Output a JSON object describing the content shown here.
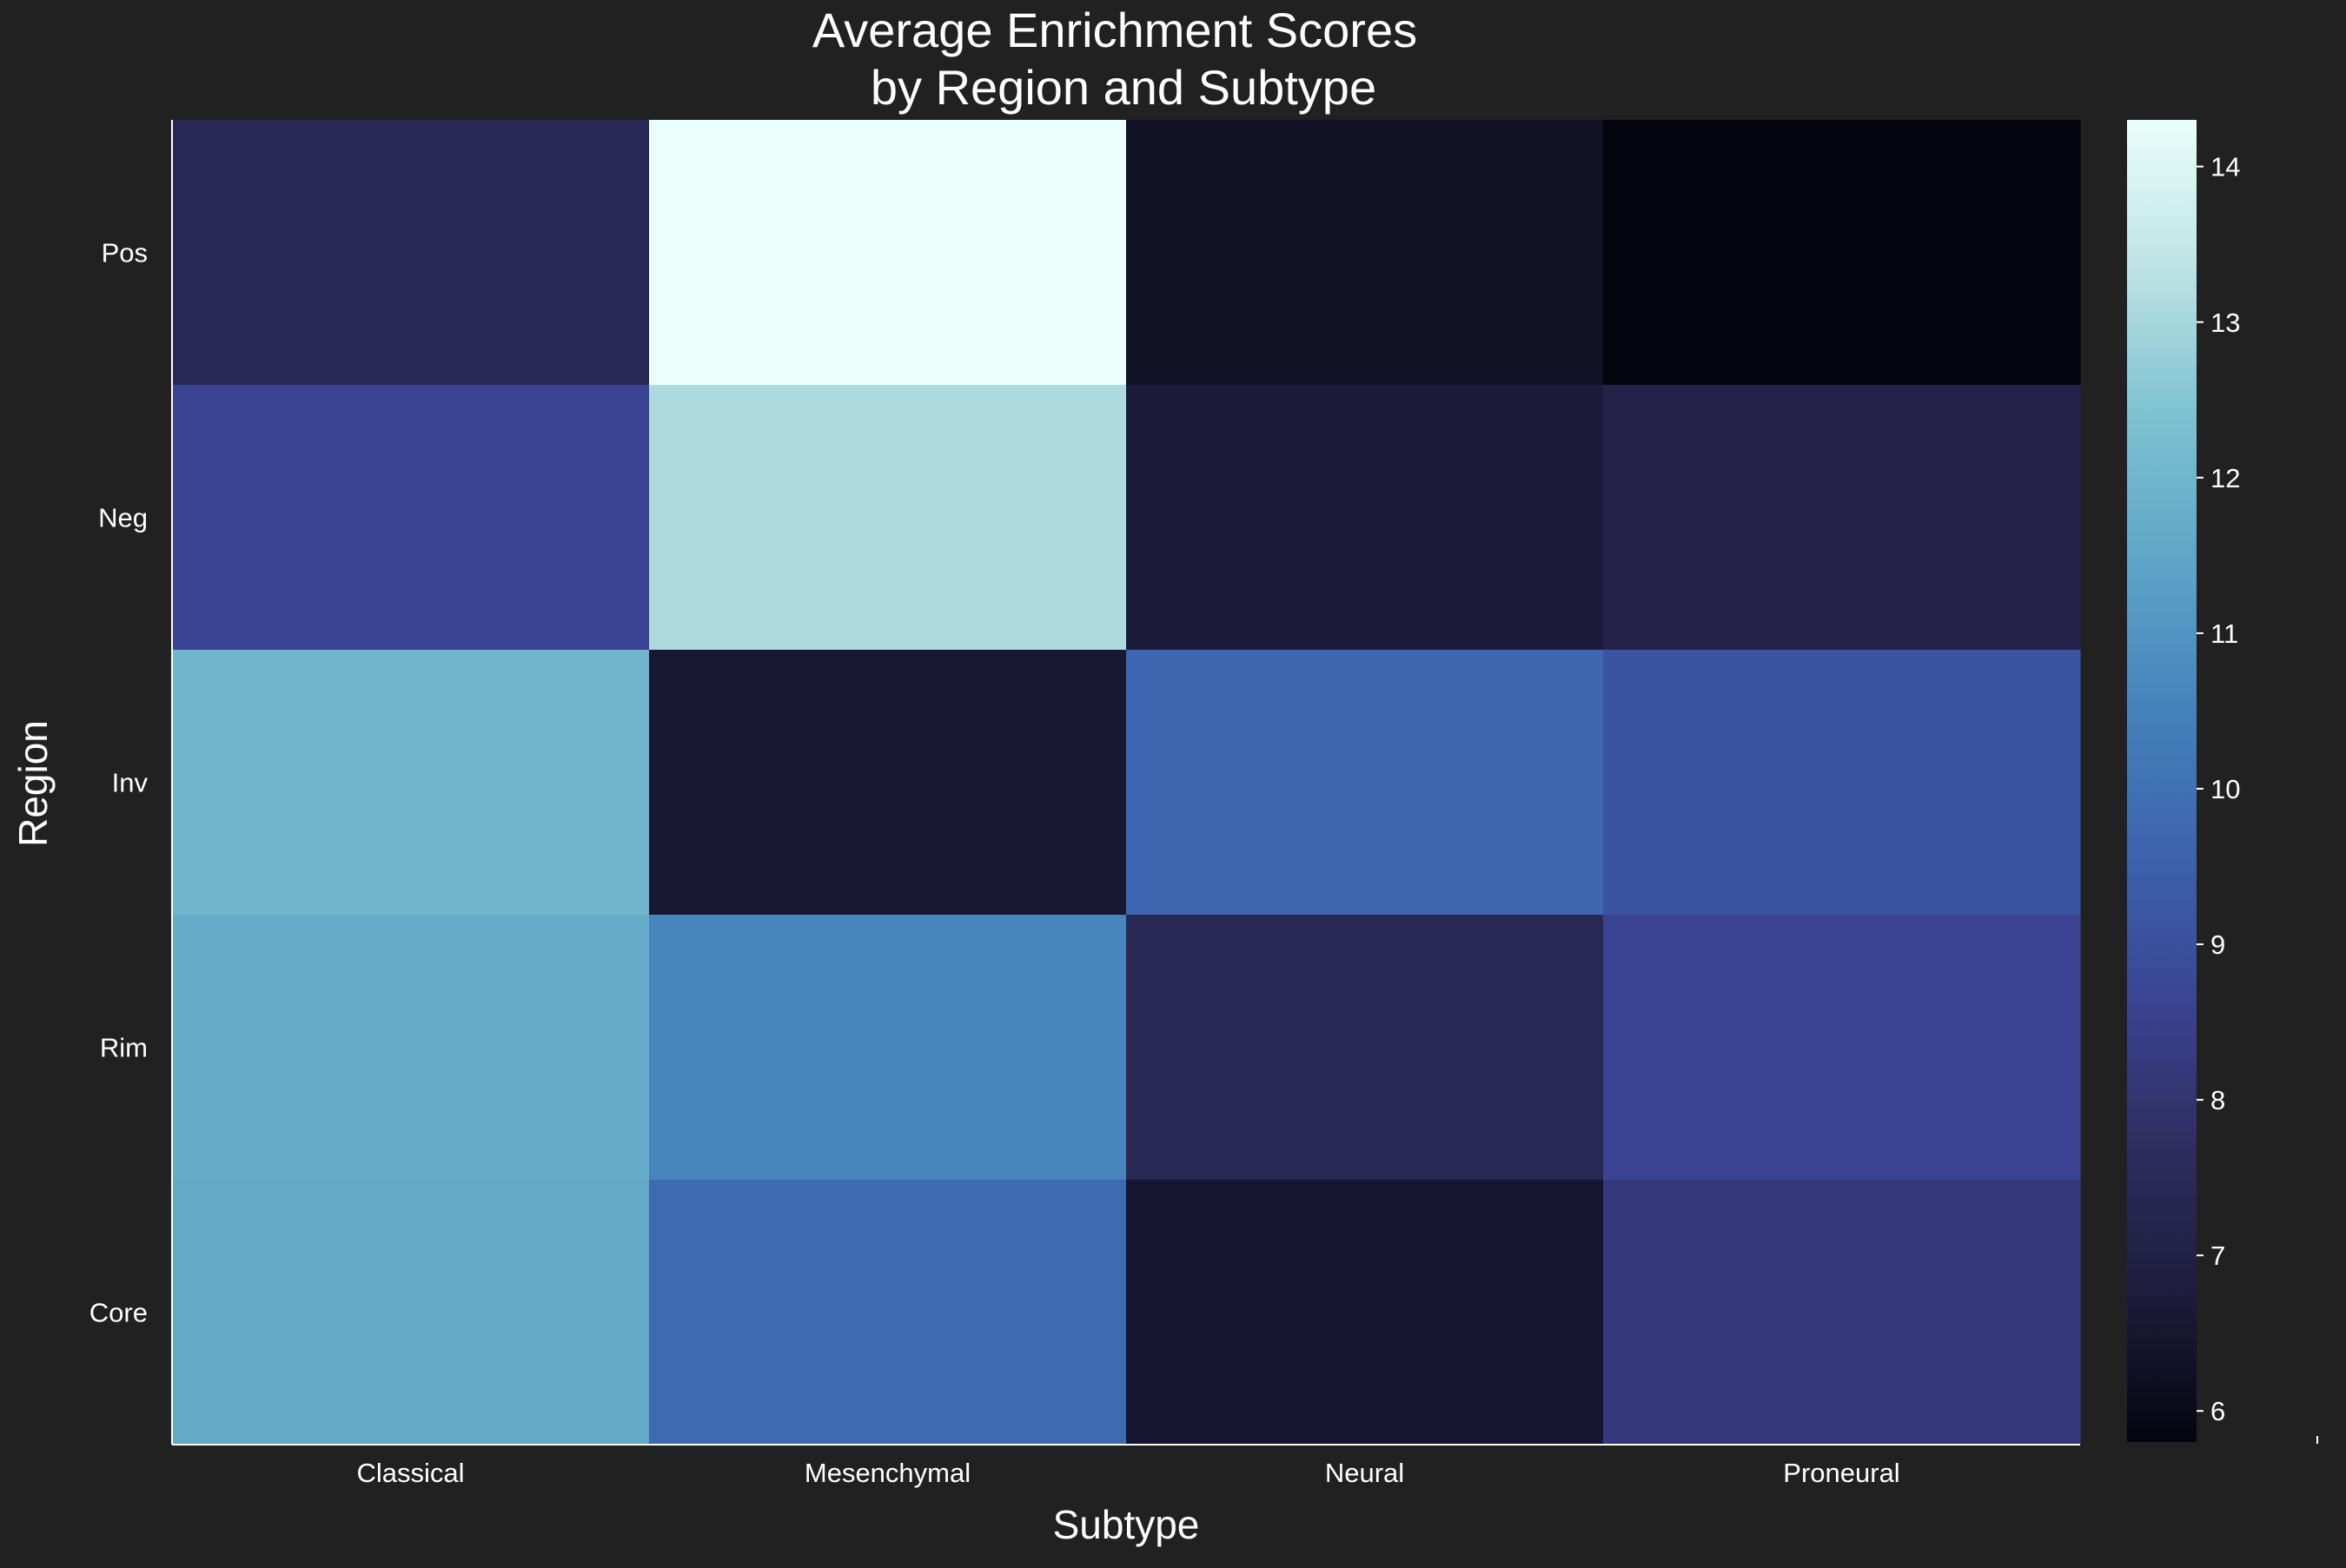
{
  "chart_data": {
    "type": "heatmap",
    "title_line1": "Average Enrichment Scores",
    "title_line2": "by Region and Subtype",
    "xlabel": "Subtype",
    "ylabel": "Region",
    "x_categories": [
      "Classical",
      "Mesenchymal",
      "Neural",
      "Proneural"
    ],
    "y_categories": [
      "Pos",
      "Neg",
      "Inv",
      "Rim",
      "Core"
    ],
    "values": [
      [
        7.4,
        14.3,
        6.3,
        5.8
      ],
      [
        8.6,
        13.1,
        6.7,
        7.1
      ],
      [
        12.0,
        6.6,
        9.7,
        9.1
      ],
      [
        11.7,
        10.6,
        7.4,
        8.6
      ],
      [
        11.6,
        9.8,
        6.5,
        8.2
      ]
    ],
    "colorbar": {
      "min": 5.8,
      "max": 14.3,
      "ticks": [
        "6",
        "7",
        "8",
        "9",
        "10",
        "11",
        "12",
        "13",
        "14"
      ]
    },
    "colormap": [
      "#03050f",
      "#1d1c3b",
      "#2f2d5f",
      "#3a4493",
      "#3c63ae",
      "#4582bb",
      "#5ea5c7",
      "#7ec2d0",
      "#bee3e5",
      "#eafffb"
    ],
    "background_color": "#212121",
    "legend": "colorbar-right",
    "grid": false
  }
}
